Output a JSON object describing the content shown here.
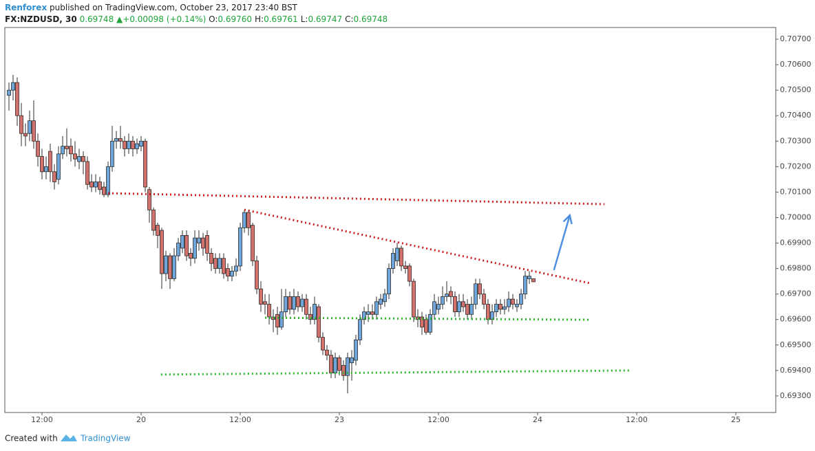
{
  "header": {
    "publisher": "Renforex",
    "published": "published on TradingView.com, October 23, 2017 23:40 BST",
    "symbol": "FX:NZDUSD, 30",
    "last": "0.69748",
    "change": "+0.00098 (+0.14%)",
    "ohlc": [
      {
        "label": "O:",
        "value": "0.69760"
      },
      {
        "label": "H:",
        "value": "0.69761"
      },
      {
        "label": "L:",
        "value": "0.69747"
      },
      {
        "label": "C:",
        "value": "0.69748"
      }
    ]
  },
  "footer": {
    "created": "Created with",
    "brand": "TradingView"
  },
  "chart_data": {
    "type": "candlestick",
    "up_color": "#6ea6dc",
    "down_color": "#d4716b",
    "outline_color": "#2b2b2b",
    "open": [
      0.7048,
      0.705,
      0.7053,
      0.704,
      0.7033,
      0.7033,
      0.7038,
      0.703,
      0.7024,
      0.7018,
      0.7026,
      0.7018,
      0.7015,
      0.7025,
      0.7028,
      0.7028,
      0.7025,
      0.7022,
      0.7024,
      0.7022,
      0.7014,
      0.7012,
      0.7014,
      0.7012,
      0.7009,
      0.702,
      0.703,
      0.7031,
      0.703,
      0.7027,
      0.703,
      0.7027,
      0.7028,
      0.703,
      0.7011,
      0.7003,
      0.6997,
      0.6995,
      0.6978,
      0.6985,
      0.6976,
      0.6985,
      0.6988,
      0.6993,
      0.6986,
      0.6984,
      0.699,
      0.6992,
      0.6993,
      0.6986,
      0.6984,
      0.698,
      0.6984,
      0.698,
      0.6977,
      0.6979,
      0.6981,
      0.6996,
      0.7002,
      0.6997,
      0.6983,
      0.6972,
      0.6967,
      0.6966,
      0.6961,
      0.6962,
      0.6957,
      0.6963,
      0.6969,
      0.6964,
      0.6969,
      0.6965,
      0.6968,
      0.6962,
      0.696,
      0.6965,
      0.6953,
      0.6948,
      0.6946,
      0.6939,
      0.6945,
      0.6942,
      0.6938,
      0.6943,
      0.6944,
      0.6952,
      0.696,
      0.6962,
      0.6963,
      0.6962,
      0.6966,
      0.6967,
      0.697,
      0.698,
      0.6983,
      0.6988,
      0.6981,
      0.6981,
      0.6975,
      0.6961,
      0.6961,
      0.696,
      0.6955,
      0.6962,
      0.6964,
      0.6966,
      0.6969,
      0.6971,
      0.6969,
      0.6963,
      0.6967,
      0.6966,
      0.6962,
      0.6966,
      0.6974,
      0.697,
      0.6966,
      0.696,
      0.6963,
      0.6966,
      0.6964,
      0.6965,
      0.6968,
      0.6965,
      0.6966,
      0.697,
      0.6976,
      0.6976
    ],
    "high": [
      0.7053,
      0.7056,
      0.7055,
      0.7045,
      0.7037,
      0.7042,
      0.7046,
      0.7033,
      0.7027,
      0.7024,
      0.7029,
      0.7021,
      0.7028,
      0.7032,
      0.7035,
      0.7031,
      0.703,
      0.7027,
      0.7026,
      0.7024,
      0.7017,
      0.7017,
      0.7016,
      0.7014,
      0.7022,
      0.7036,
      0.7034,
      0.7036,
      0.7032,
      0.7033,
      0.7032,
      0.7031,
      0.7032,
      0.7031,
      0.7012,
      0.7004,
      0.6998,
      0.6996,
      0.6987,
      0.6986,
      0.6988,
      0.6992,
      0.6995,
      0.6995,
      0.6988,
      0.6995,
      0.6995,
      0.6994,
      0.6995,
      0.6988,
      0.6986,
      0.6986,
      0.6986,
      0.6982,
      0.6981,
      0.6984,
      0.6998,
      0.7003,
      0.7003,
      0.6998,
      0.6985,
      0.6975,
      0.697,
      0.697,
      0.6964,
      0.6965,
      0.6972,
      0.6972,
      0.6971,
      0.6972,
      0.6971,
      0.697,
      0.697,
      0.6965,
      0.6969,
      0.6966,
      0.6955,
      0.695,
      0.6948,
      0.6947,
      0.6946,
      0.6944,
      0.6947,
      0.6948,
      0.6954,
      0.6962,
      0.6965,
      0.6966,
      0.6966,
      0.6969,
      0.697,
      0.6972,
      0.6982,
      0.6988,
      0.699,
      0.6989,
      0.6983,
      0.6982,
      0.6976,
      0.6964,
      0.6963,
      0.6962,
      0.6964,
      0.697,
      0.6969,
      0.6973,
      0.6975,
      0.6973,
      0.6971,
      0.697,
      0.697,
      0.6968,
      0.6969,
      0.6976,
      0.6976,
      0.6972,
      0.6968,
      0.6966,
      0.6968,
      0.6968,
      0.6968,
      0.6971,
      0.697,
      0.6968,
      0.6972,
      0.6979,
      0.6979,
      0.69761
    ],
    "low": [
      0.7042,
      0.7046,
      0.7036,
      0.7028,
      0.7028,
      0.703,
      0.7027,
      0.702,
      0.7015,
      0.7015,
      0.7014,
      0.7011,
      0.7013,
      0.7023,
      0.7024,
      0.7022,
      0.702,
      0.7019,
      0.7017,
      0.7011,
      0.701,
      0.701,
      0.7009,
      0.7008,
      0.7008,
      0.7018,
      0.7027,
      0.7027,
      0.7024,
      0.7025,
      0.7024,
      0.7025,
      0.7026,
      0.701,
      0.6998,
      0.6993,
      0.6988,
      0.6972,
      0.6975,
      0.6972,
      0.6975,
      0.6983,
      0.6986,
      0.6983,
      0.6981,
      0.6982,
      0.6987,
      0.6985,
      0.6983,
      0.6979,
      0.6978,
      0.6978,
      0.6976,
      0.6975,
      0.6975,
      0.6977,
      0.6979,
      0.6994,
      0.6993,
      0.6981,
      0.697,
      0.6963,
      0.6962,
      0.6958,
      0.6955,
      0.6954,
      0.6956,
      0.6961,
      0.6962,
      0.6962,
      0.6963,
      0.6963,
      0.696,
      0.6958,
      0.6958,
      0.6951,
      0.6946,
      0.6944,
      0.6937,
      0.6937,
      0.6938,
      0.6936,
      0.6931,
      0.6936,
      0.6942,
      0.695,
      0.6958,
      0.6959,
      0.696,
      0.696,
      0.6964,
      0.6965,
      0.6968,
      0.6978,
      0.6981,
      0.6979,
      0.6978,
      0.6973,
      0.6959,
      0.6957,
      0.6954,
      0.6954,
      0.6954,
      0.696,
      0.6962,
      0.6964,
      0.6967,
      0.6966,
      0.6961,
      0.6961,
      0.6963,
      0.696,
      0.696,
      0.6964,
      0.6968,
      0.6964,
      0.6958,
      0.6958,
      0.6961,
      0.6962,
      0.6962,
      0.6963,
      0.6964,
      0.6963,
      0.6964,
      0.6968,
      0.6974,
      0.69747
    ],
    "close": [
      0.705,
      0.7053,
      0.704,
      0.7033,
      0.7032,
      0.7038,
      0.703,
      0.7024,
      0.7018,
      0.702,
      0.7018,
      0.7014,
      0.7025,
      0.7028,
      0.7027,
      0.7025,
      0.7023,
      0.7024,
      0.7022,
      0.7013,
      0.7012,
      0.7014,
      0.7011,
      0.7009,
      0.702,
      0.703,
      0.7031,
      0.703,
      0.7027,
      0.703,
      0.7027,
      0.7029,
      0.703,
      0.7012,
      0.7003,
      0.6995,
      0.6993,
      0.6978,
      0.6985,
      0.6976,
      0.6985,
      0.699,
      0.6993,
      0.6985,
      0.6984,
      0.6992,
      0.6992,
      0.6988,
      0.6986,
      0.6982,
      0.698,
      0.6984,
      0.6978,
      0.6977,
      0.6979,
      0.6981,
      0.6996,
      0.7002,
      0.6996,
      0.6983,
      0.6972,
      0.6966,
      0.6966,
      0.6961,
      0.696,
      0.6957,
      0.6963,
      0.6969,
      0.6964,
      0.6969,
      0.6965,
      0.6968,
      0.6962,
      0.696,
      0.6966,
      0.6953,
      0.6948,
      0.6946,
      0.6939,
      0.6945,
      0.694,
      0.6938,
      0.6945,
      0.6945,
      0.6952,
      0.696,
      0.6963,
      0.6963,
      0.6962,
      0.6967,
      0.6968,
      0.697,
      0.698,
      0.6986,
      0.6988,
      0.6981,
      0.698,
      0.6975,
      0.6961,
      0.696,
      0.6957,
      0.6955,
      0.6962,
      0.6967,
      0.6966,
      0.6969,
      0.697,
      0.6969,
      0.6963,
      0.6967,
      0.6965,
      0.6962,
      0.6966,
      0.6974,
      0.697,
      0.6966,
      0.696,
      0.6963,
      0.6966,
      0.6964,
      0.6965,
      0.6968,
      0.6966,
      0.6966,
      0.697,
      0.6977,
      0.6977,
      0.69748
    ],
    "xlim": [
      -1,
      185.67
    ],
    "xticks": [
      {
        "value": 8,
        "label": "12:00"
      },
      {
        "value": 32,
        "label": "20"
      },
      {
        "value": 56,
        "label": "12:00"
      },
      {
        "value": 80,
        "label": "23"
      },
      {
        "value": 104,
        "label": "12:00"
      },
      {
        "value": 128,
        "label": "24"
      },
      {
        "value": 152,
        "label": "12:00"
      },
      {
        "value": 176,
        "label": "25"
      }
    ],
    "ylim": [
      0.69235,
      0.70746
    ],
    "yticks": [
      {
        "value": 0.693,
        "label": "0.69300"
      },
      {
        "value": 0.694,
        "label": "0.69400"
      },
      {
        "value": 0.695,
        "label": "0.69500"
      },
      {
        "value": 0.696,
        "label": "0.69600"
      },
      {
        "value": 0.697,
        "label": "0.69700"
      },
      {
        "value": 0.698,
        "label": "0.69800"
      },
      {
        "value": 0.699,
        "label": "0.69900"
      },
      {
        "value": 0.7,
        "label": "0.70000"
      },
      {
        "value": 0.701,
        "label": "0.70100"
      },
      {
        "value": 0.702,
        "label": "0.70200"
      },
      {
        "value": 0.703,
        "label": "0.70300"
      },
      {
        "value": 0.704,
        "label": "0.70400"
      },
      {
        "value": 0.705,
        "label": "0.70500"
      },
      {
        "value": 0.706,
        "label": "0.70600"
      },
      {
        "value": 0.707,
        "label": "0.70700"
      }
    ],
    "lines": [
      {
        "color": "#cc1f1f",
        "x": [
          24,
          144.2
        ],
        "y": [
          0.700957,
          0.700526
        ]
      },
      {
        "color": "#cc1f1f",
        "x": [
          57,
          140.8
        ],
        "y": [
          0.70031,
          0.69742
        ]
      },
      {
        "color": "#2cb52c",
        "x": [
          62,
          140.7
        ],
        "y": [
          0.69607,
          0.69599
        ]
      },
      {
        "color": "#2cb52c",
        "x": [
          36.8,
          150.8
        ],
        "y": [
          0.69384,
          0.694
        ]
      }
    ],
    "arrows": [
      {
        "color": "#4d8fe0",
        "x": [
          132,
          135.8
        ],
        "y": [
          0.69796,
          0.70009
        ]
      }
    ]
  }
}
